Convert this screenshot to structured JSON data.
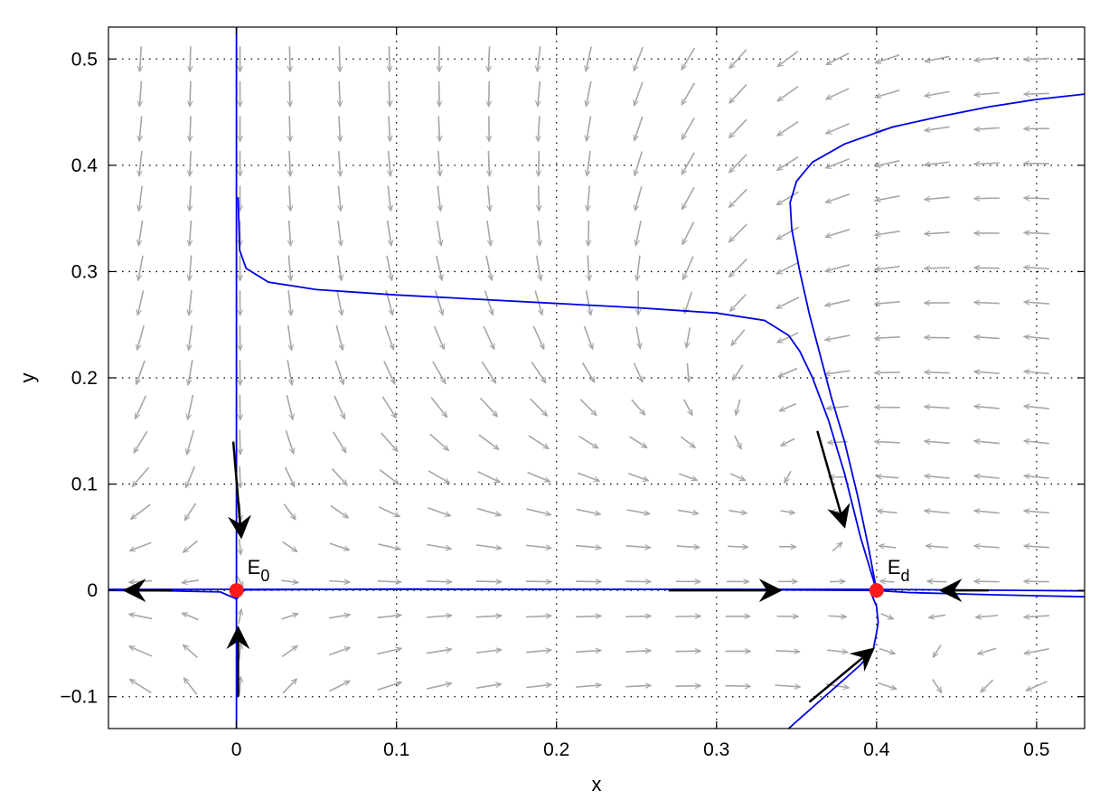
{
  "chart_data": {
    "type": "phase-portrait",
    "title": "",
    "xlabel": "x",
    "ylabel": "y",
    "xlim": [
      -0.08,
      0.53
    ],
    "ylim": [
      -0.13,
      0.53
    ],
    "grid": true,
    "grid_style": "dotted",
    "xticks": [
      0,
      0.1,
      0.2,
      0.3,
      0.4,
      0.5
    ],
    "xtick_labels": [
      "0",
      "0.1",
      "0.2",
      "0.3",
      "0.4",
      "0.5"
    ],
    "yticks": [
      -0.1,
      0,
      0.1,
      0.2,
      0.3,
      0.4,
      0.5
    ],
    "ytick_labels": [
      "−0.1",
      "0",
      "0.1",
      "0.2",
      "0.3",
      "0.4",
      "0.5"
    ],
    "colors": {
      "field": "#a6a6a6",
      "trajectory": "#0000e6",
      "equilibrium": "#ff1a1a",
      "direction_arrow": "#000000",
      "axes": "#000000"
    },
    "vector_field": {
      "x_range": [
        -0.06,
        0.5
      ],
      "y_range": [
        -0.09,
        0.5
      ],
      "nx": 19,
      "ny": 19
    },
    "equilibria": [
      {
        "name": "E0",
        "label": "E",
        "sub": "0",
        "x": 0,
        "y": 0
      },
      {
        "name": "Ed",
        "label": "E",
        "sub": "d",
        "x": 0.4,
        "y": 0
      }
    ],
    "trajectories": [
      {
        "name": "x-axis",
        "points": [
          [
            -0.08,
            0.001
          ],
          [
            0.4,
            0.001
          ],
          [
            0.53,
            -0.0005
          ]
        ]
      },
      {
        "name": "y-axis",
        "points": [
          [
            0,
            0.53
          ],
          [
            0,
            -0.13
          ]
        ]
      },
      {
        "name": "upper-left",
        "points": [
          [
            0.001,
            0.37
          ],
          [
            0.002,
            0.32
          ],
          [
            0.006,
            0.303
          ],
          [
            0.02,
            0.29
          ],
          [
            0.05,
            0.283
          ],
          [
            0.1,
            0.278
          ],
          [
            0.15,
            0.274
          ],
          [
            0.2,
            0.27
          ],
          [
            0.25,
            0.266
          ],
          [
            0.3,
            0.261
          ],
          [
            0.33,
            0.254
          ],
          [
            0.345,
            0.24
          ],
          [
            0.352,
            0.225
          ],
          [
            0.36,
            0.2
          ],
          [
            0.37,
            0.16
          ],
          [
            0.38,
            0.11
          ],
          [
            0.39,
            0.05
          ],
          [
            0.4,
            0.0
          ]
        ]
      },
      {
        "name": "upper-right",
        "points": [
          [
            0.53,
            0.467
          ],
          [
            0.5,
            0.462
          ],
          [
            0.47,
            0.455
          ],
          [
            0.44,
            0.446
          ],
          [
            0.41,
            0.436
          ],
          [
            0.38,
            0.42
          ],
          [
            0.36,
            0.403
          ],
          [
            0.35,
            0.385
          ],
          [
            0.346,
            0.365
          ],
          [
            0.347,
            0.34
          ],
          [
            0.352,
            0.3
          ],
          [
            0.358,
            0.26
          ],
          [
            0.365,
            0.22
          ],
          [
            0.372,
            0.18
          ],
          [
            0.38,
            0.14
          ],
          [
            0.388,
            0.09
          ],
          [
            0.395,
            0.04
          ],
          [
            0.4,
            0.0
          ]
        ]
      },
      {
        "name": "lower-right",
        "points": [
          [
            0.345,
            -0.13
          ],
          [
            0.36,
            -0.11
          ],
          [
            0.375,
            -0.09
          ],
          [
            0.39,
            -0.07
          ],
          [
            0.398,
            -0.055
          ],
          [
            0.4,
            -0.04
          ],
          [
            0.401,
            -0.03
          ],
          [
            0.4,
            -0.015
          ],
          [
            0.397,
            -0.004
          ],
          [
            0.4,
            0.0
          ]
        ]
      },
      {
        "name": "near-E0-left",
        "points": [
          [
            -0.08,
            0.0
          ],
          [
            -0.04,
            -0.0005
          ],
          [
            -0.01,
            -0.0015
          ],
          [
            0.0,
            -0.008
          ]
        ]
      },
      {
        "name": "near-E0-right",
        "points": [
          [
            0.0,
            -0.008
          ],
          [
            0.005,
            0.0005
          ],
          [
            0.1,
            0.0012
          ],
          [
            0.3,
            0.0008
          ],
          [
            0.4,
            0.0
          ]
        ]
      },
      {
        "name": "near-Ed-right",
        "points": [
          [
            0.4,
            0.0
          ],
          [
            0.42,
            -0.002
          ],
          [
            0.47,
            -0.004
          ],
          [
            0.53,
            -0.006
          ]
        ]
      }
    ],
    "direction_arrows": [
      {
        "from": [
          -0.002,
          0.14
        ],
        "to": [
          0.003,
          0.05
        ]
      },
      {
        "from": [
          0.001,
          -0.1
        ],
        "to": [
          0.001,
          -0.035
        ]
      },
      {
        "from": [
          -0.04,
          0.0
        ],
        "to": [
          -0.07,
          0.0
        ]
      },
      {
        "from": [
          0.27,
          0.0
        ],
        "to": [
          0.34,
          0.0
        ]
      },
      {
        "from": [
          0.47,
          0.0
        ],
        "to": [
          0.44,
          0.0
        ]
      },
      {
        "from": [
          0.363,
          0.15
        ],
        "to": [
          0.38,
          0.06
        ]
      },
      {
        "from": [
          0.358,
          -0.105
        ],
        "to": [
          0.398,
          -0.055
        ]
      }
    ]
  }
}
